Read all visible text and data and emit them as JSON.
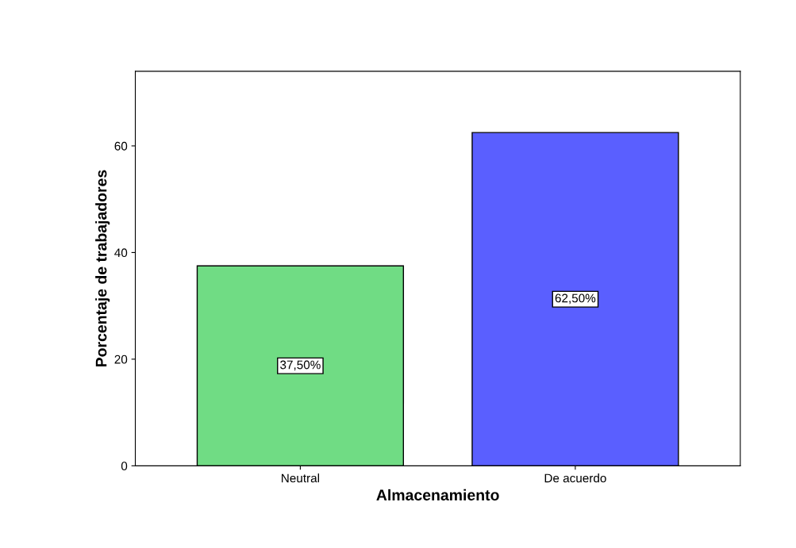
{
  "chart_data": {
    "type": "bar",
    "xlabel": "Almacenamiento",
    "ylabel": "Porcentaje de trabajadores",
    "categories": [
      "Neutral",
      "De acuerdo"
    ],
    "values": [
      37.5,
      62.5
    ],
    "colors": [
      "#70dc84",
      "#5a5fff"
    ],
    "value_labels": [
      "37,50%",
      "62,50%"
    ],
    "ylim": [
      0,
      74
    ],
    "yticks": [
      0,
      20,
      40,
      60
    ],
    "grid": false
  }
}
